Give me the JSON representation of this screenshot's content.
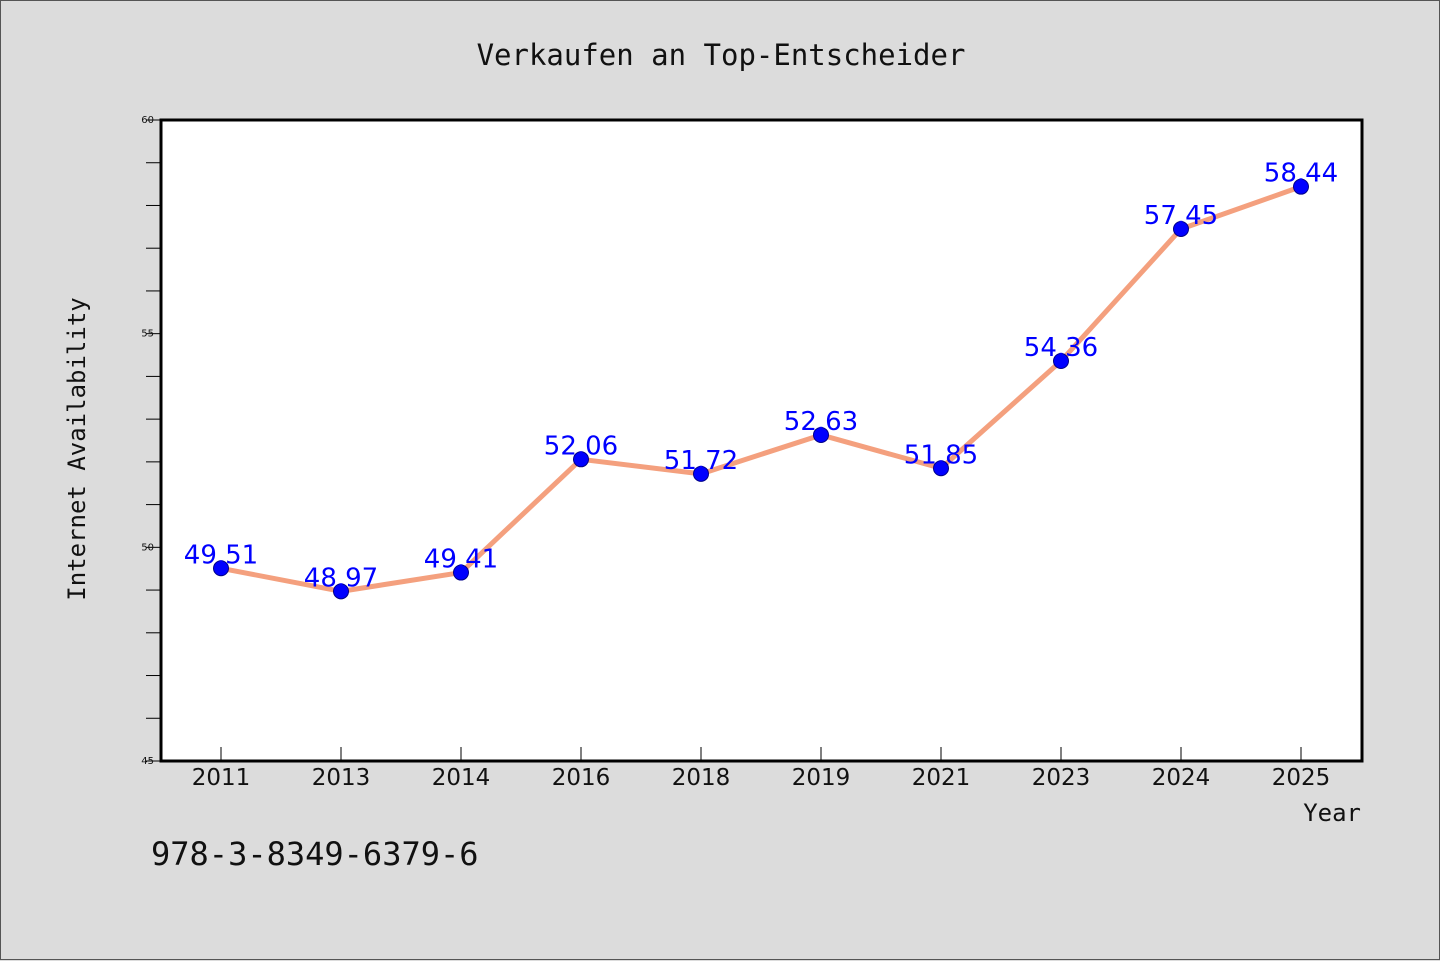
{
  "chart_data": {
    "type": "line",
    "title": "Verkaufen an Top-Entscheider",
    "xlabel": "Year",
    "ylabel": "Internet Availability",
    "categories": [
      "2011",
      "2013",
      "2014",
      "2016",
      "2018",
      "2019",
      "2021",
      "2023",
      "2024",
      "2025"
    ],
    "series": [
      {
        "values": [
          49.51,
          48.97,
          49.41,
          52.06,
          51.72,
          52.63,
          51.85,
          54.36,
          57.45,
          58.44
        ],
        "data_labels": [
          "49.51",
          "48.97",
          "49.41",
          "52.06",
          "51.72",
          "52.63",
          "51.85",
          "54.36",
          "57.45",
          "58.44"
        ],
        "line_color": "#f4a07e",
        "marker_color": "#0000ff"
      }
    ],
    "ylim": [
      45,
      60
    ],
    "yticks": [
      "45",
      "50",
      "55",
      "60"
    ],
    "y_minor_step": 1,
    "grid": false,
    "legend": "none"
  },
  "annotation": {
    "isbn": "978-3-8349-6379-6"
  },
  "colors": {
    "background": "#dcdcdc",
    "plot_background": "#ffffff",
    "line": "#f4a07e",
    "marker": "#0000ff",
    "data_label": "#0000ff"
  }
}
